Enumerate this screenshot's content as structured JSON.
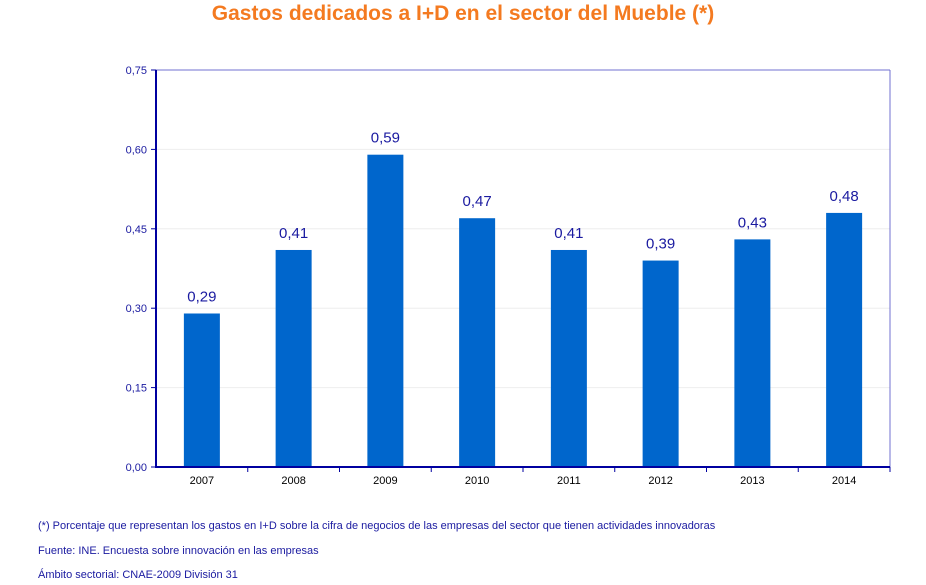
{
  "chart_data": {
    "type": "bar",
    "title": "Gastos dedicados a I+D en el sector del Mueble (*)",
    "categories": [
      "2007",
      "2008",
      "2009",
      "2010",
      "2011",
      "2012",
      "2013",
      "2014"
    ],
    "values": [
      0.29,
      0.41,
      0.59,
      0.47,
      0.41,
      0.39,
      0.43,
      0.48
    ],
    "data_labels": [
      "0,29",
      "0,41",
      "0,59",
      "0,47",
      "0,41",
      "0,39",
      "0,43",
      "0,48"
    ],
    "ylim": [
      0,
      0.75
    ],
    "yticks": [
      0,
      0.15,
      0.3,
      0.45,
      0.6,
      0.75
    ],
    "ytick_labels": [
      "0,00",
      "0,15",
      "0,30",
      "0,45",
      "0,60",
      "0,75"
    ],
    "xlabel": "",
    "ylabel": "",
    "grid": "horizontal, light",
    "legend": "none",
    "colors": {
      "bar": "#0066cc",
      "title": "#f47a20",
      "text": "#1a1aa0",
      "axis": "#0000a0",
      "frame": "#7070d0"
    }
  },
  "notes": {
    "footnote": "(*) Porcentaje que representan los gastos en I+D sobre la cifra de negocios de las empresas del sector que tienen actividades innovadoras",
    "source": "Fuente: INE. Encuesta sobre innovación en las empresas",
    "scope": "Ámbito sectorial: CNAE-2009 División 31"
  }
}
